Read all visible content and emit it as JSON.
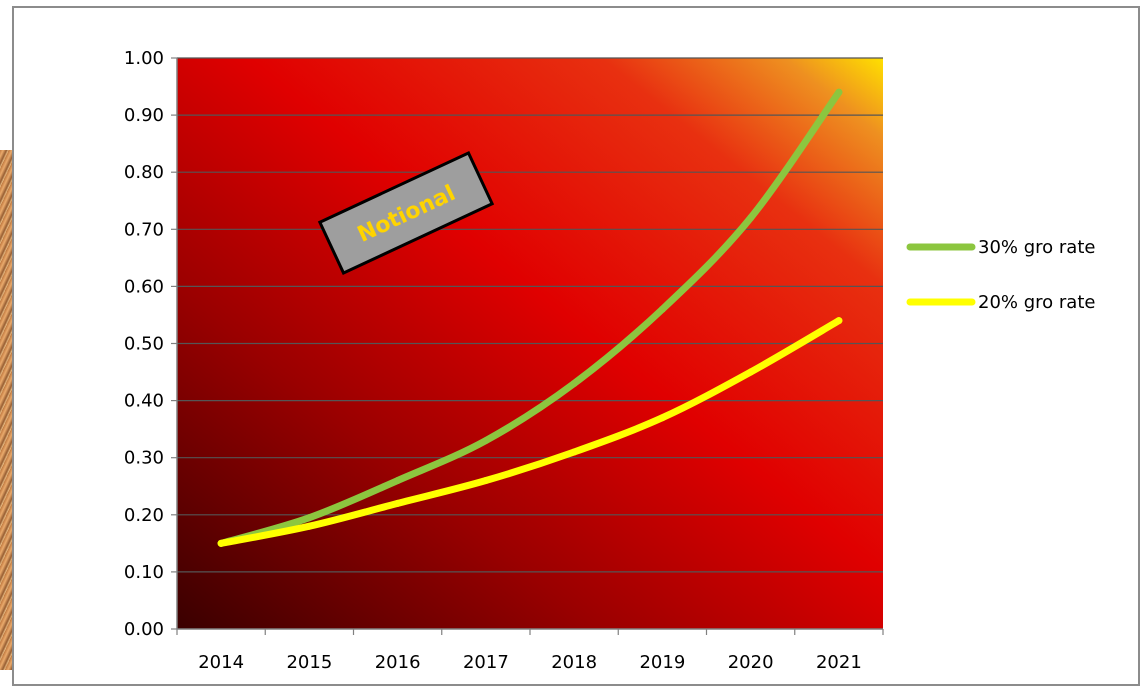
{
  "chart_data": {
    "type": "line",
    "x": [
      "2014",
      "2015",
      "2016",
      "2017",
      "2018",
      "2019",
      "2020",
      "2021"
    ],
    "ylim": [
      0,
      1.0
    ],
    "yticks": [
      "0.00",
      "0.10",
      "0.20",
      "0.30",
      "0.40",
      "0.50",
      "0.60",
      "0.70",
      "0.80",
      "0.90",
      "1.00"
    ],
    "grid": true,
    "legend_position": "right",
    "series": [
      {
        "name": "30% gro rate",
        "color": "#8cc63f",
        "values": [
          0.15,
          0.195,
          0.26,
          0.33,
          0.43,
          0.56,
          0.72,
          0.94
        ]
      },
      {
        "name": "20% gro rate",
        "color": "#ffff00",
        "values": [
          0.15,
          0.18,
          0.22,
          0.26,
          0.31,
          0.37,
          0.45,
          0.54
        ]
      }
    ],
    "annotation": "Notional"
  }
}
